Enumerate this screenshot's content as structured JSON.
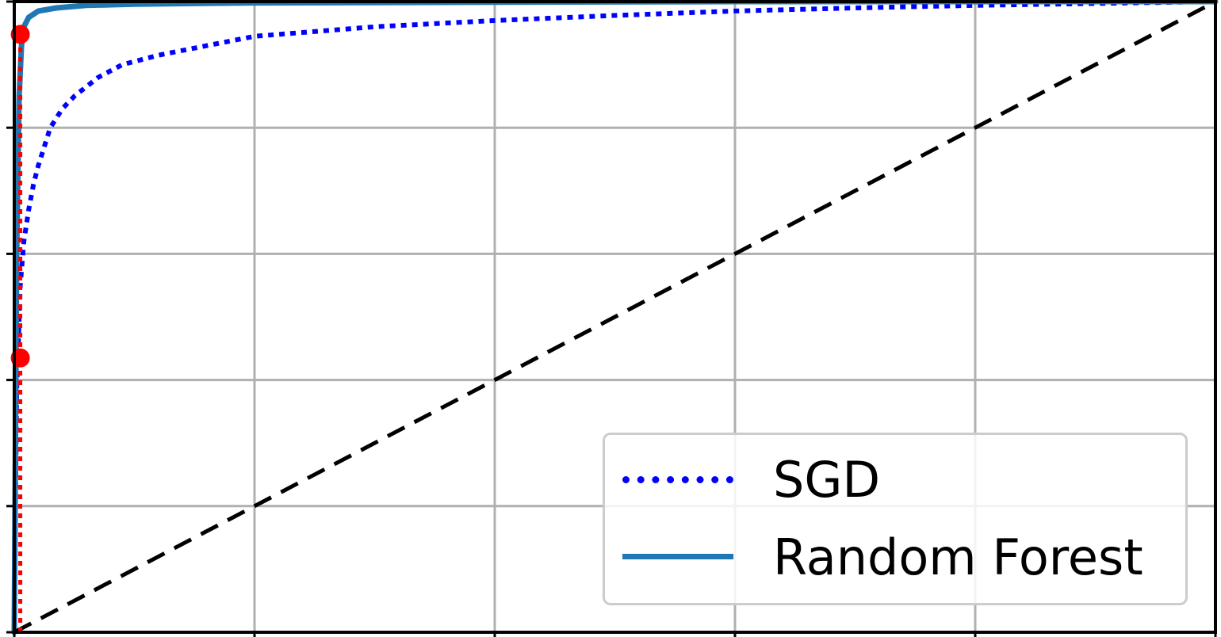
{
  "chart_data": {
    "type": "line",
    "title": "",
    "xlabel": "",
    "ylabel": "",
    "xlim": [
      0,
      1
    ],
    "ylim": [
      0,
      1
    ],
    "grid": true,
    "legend_position": "lower-right",
    "x_ticks": [
      0.0,
      0.2,
      0.4,
      0.6,
      0.8,
      1.0
    ],
    "y_ticks": [
      0.0,
      0.2,
      0.4,
      0.6,
      0.8,
      1.0
    ],
    "series": [
      {
        "name": "SGD",
        "style": "dotted",
        "color": "#0000ff",
        "x": [
          0.0,
          0.002,
          0.005,
          0.008,
          0.012,
          0.016,
          0.02,
          0.025,
          0.03,
          0.04,
          0.05,
          0.07,
          0.09,
          0.12,
          0.16,
          0.2,
          0.3,
          0.4,
          0.5,
          0.6,
          0.7,
          0.8,
          0.9,
          1.0
        ],
        "y": [
          0.0,
          0.38,
          0.55,
          0.62,
          0.67,
          0.71,
          0.74,
          0.77,
          0.8,
          0.83,
          0.85,
          0.88,
          0.9,
          0.915,
          0.93,
          0.945,
          0.96,
          0.97,
          0.978,
          0.985,
          0.99,
          0.994,
          0.997,
          1.0
        ]
      },
      {
        "name": "Random Forest",
        "style": "solid",
        "color": "#1f77b4",
        "x": [
          0.0,
          0.002,
          0.004,
          0.006,
          0.008,
          0.012,
          0.02,
          0.035,
          0.06,
          0.1,
          0.2,
          0.4,
          0.6,
          0.8,
          1.0
        ],
        "y": [
          0.0,
          0.6,
          0.85,
          0.93,
          0.96,
          0.975,
          0.985,
          0.99,
          0.994,
          0.996,
          0.998,
          0.999,
          1.0,
          1.0,
          1.0
        ]
      },
      {
        "style": "dashed",
        "color": "#000000",
        "x": [
          0,
          1
        ],
        "y": [
          0,
          1
        ]
      }
    ],
    "markers": {
      "color": "#ff0000",
      "points": [
        {
          "x": 0.005,
          "y": 0.435
        },
        {
          "x": 0.005,
          "y": 0.948
        }
      ]
    },
    "guide_line": {
      "style": "dotted",
      "color": "#ff0000",
      "x": [
        0.005,
        0.005
      ],
      "y": [
        0.0,
        0.948
      ]
    }
  },
  "legend": {
    "sgd_label": "SGD",
    "rf_label": "Random Forest"
  }
}
